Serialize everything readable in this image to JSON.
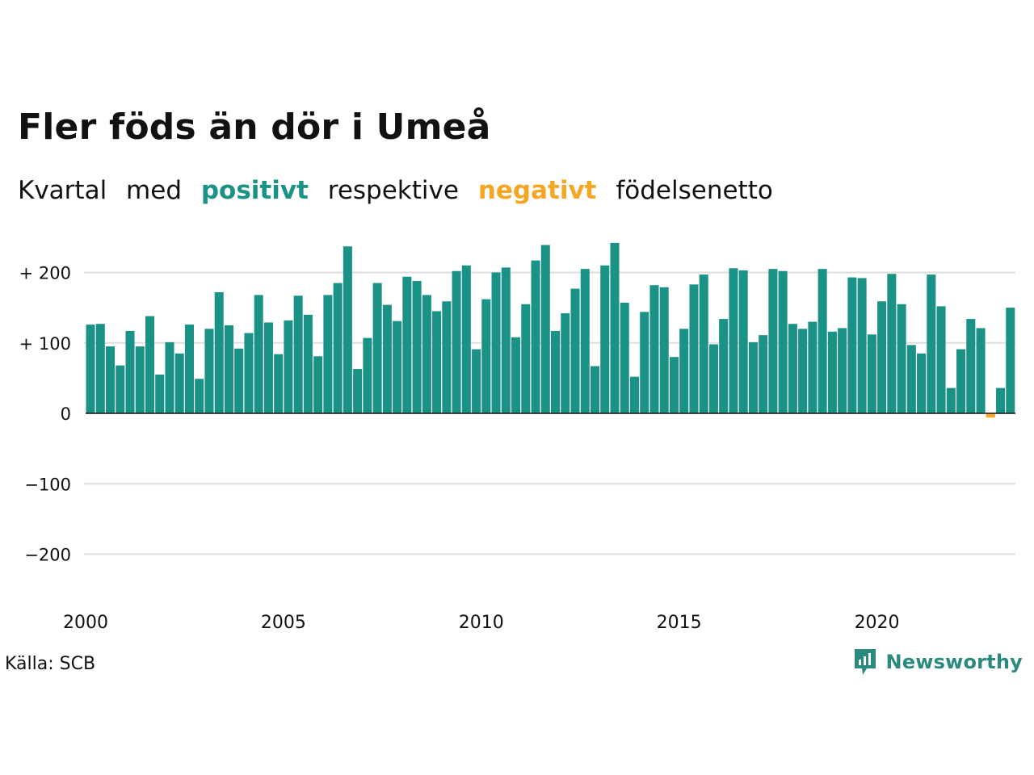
{
  "title": "Fler föds än dör i Umeå",
  "subtitle": {
    "w1": "Kvartal",
    "w2": "med",
    "positive": "positivt",
    "w4": "respektive",
    "negative": "negativt",
    "w6": "födelsenetto"
  },
  "source": "Källa: SCB",
  "brand": "Newsworthy",
  "colors": {
    "positive": "#1a9386",
    "negative": "#f5a623"
  },
  "chart_data": {
    "type": "bar",
    "start_year": 2000,
    "quarters_per_year": 4,
    "values": [
      126,
      127,
      95,
      68,
      117,
      95,
      138,
      55,
      101,
      85,
      126,
      49,
      120,
      172,
      125,
      92,
      114,
      168,
      129,
      84,
      132,
      167,
      140,
      81,
      168,
      185,
      237,
      63,
      107,
      185,
      154,
      131,
      194,
      188,
      168,
      145,
      159,
      202,
      210,
      91,
      162,
      200,
      207,
      108,
      155,
      217,
      239,
      117,
      142,
      177,
      205,
      67,
      210,
      242,
      157,
      52,
      144,
      182,
      179,
      80,
      120,
      183,
      197,
      98,
      134,
      206,
      203,
      101,
      111,
      205,
      202,
      127,
      120,
      130,
      205,
      116,
      121,
      193,
      192,
      112,
      159,
      198,
      155,
      97,
      85,
      197,
      152,
      36,
      91,
      134,
      121,
      -6,
      36,
      150
    ],
    "ylim": [
      -250,
      250
    ],
    "yticks": [
      -200,
      -100,
      0,
      100,
      200
    ],
    "ytick_labels": [
      "−200",
      "−100",
      "0",
      "+ 100",
      "+ 200"
    ],
    "xticks": [
      2000,
      2005,
      2010,
      2015,
      2020
    ],
    "xtick_labels": [
      "2000",
      "2005",
      "2010",
      "2015",
      "2020"
    ],
    "grid": true
  }
}
